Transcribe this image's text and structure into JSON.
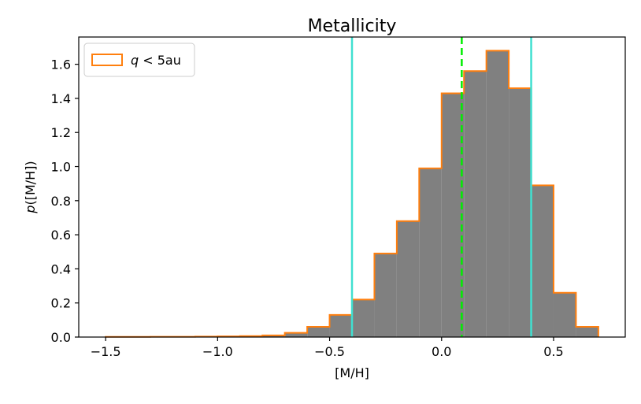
{
  "chart_data": {
    "type": "bar",
    "title": "Metallicity",
    "xlabel": "[M/H]",
    "ylabel": "p([M/H])",
    "xlim": [
      -1.62,
      0.82
    ],
    "ylim": [
      0,
      1.76
    ],
    "x_ticks": [
      -1.5,
      -1.0,
      -0.5,
      0.0,
      0.5
    ],
    "x_tick_labels": [
      "−1.5",
      "−1.0",
      "−0.5",
      "0.0",
      "0.5"
    ],
    "y_ticks": [
      0.0,
      0.2,
      0.4,
      0.6,
      0.8,
      1.0,
      1.2,
      1.4,
      1.6
    ],
    "y_tick_labels": [
      "0.0",
      "0.2",
      "0.4",
      "0.6",
      "0.8",
      "1.0",
      "1.2",
      "1.4",
      "1.6"
    ],
    "grid": false,
    "legend_position": "top-left",
    "series": [
      {
        "name": "q < 5au",
        "bin_edges": [
          -1.5,
          -1.4,
          -1.3,
          -1.2,
          -1.1,
          -1.0,
          -0.9,
          -0.8,
          -0.7,
          -0.6,
          -0.5,
          -0.4,
          -0.3,
          -0.2,
          -0.1,
          0.0,
          0.1,
          0.2,
          0.3,
          0.4,
          0.5,
          0.6,
          0.7
        ],
        "values": [
          0.001,
          0.001,
          0.002,
          0.002,
          0.003,
          0.004,
          0.006,
          0.01,
          0.025,
          0.06,
          0.13,
          0.22,
          0.49,
          0.68,
          0.99,
          1.43,
          1.56,
          1.68,
          1.46,
          0.89,
          0.26,
          0.06
        ]
      }
    ],
    "vertical_lines": [
      {
        "x": -0.4,
        "style": "solid",
        "color": "#40e0d0"
      },
      {
        "x": 0.4,
        "style": "solid",
        "color": "#40e0d0"
      },
      {
        "x": 0.09,
        "style": "dashed",
        "color": "#00ee00"
      }
    ],
    "colors": {
      "bar_fill": "#808080",
      "bar_edge": "#ff7f0e",
      "interval_line": "#40e0d0",
      "median_line": "#00ee00"
    }
  }
}
